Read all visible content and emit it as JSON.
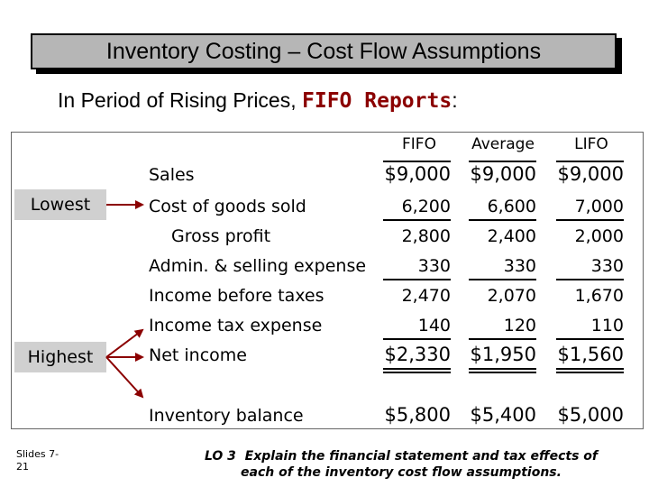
{
  "title": "Inventory Costing – Cost Flow Assumptions",
  "subtitle": {
    "prefix": "In Period of Rising Prices,",
    "highlight": "FIFO Reports",
    "suffix": ":"
  },
  "side_labels": {
    "lowest": "Lowest",
    "highest": "Highest"
  },
  "columns": [
    "FIFO",
    "Average",
    "LIFO"
  ],
  "rows": [
    {
      "label": "Sales",
      "values": [
        "$9,000",
        "$9,000",
        "$9,000"
      ]
    },
    {
      "label": "Cost of goods sold",
      "values": [
        "6,200",
        "6,600",
        "7,000"
      ]
    },
    {
      "label": "Gross profit",
      "values": [
        "2,800",
        "2,400",
        "2,000"
      ]
    },
    {
      "label": "Admin. & selling expense",
      "values": [
        "330",
        "330",
        "330"
      ]
    },
    {
      "label": "Income before taxes",
      "values": [
        "2,470",
        "2,070",
        "1,670"
      ]
    },
    {
      "label": "Income tax expense",
      "values": [
        "140",
        "120",
        "110"
      ]
    },
    {
      "label": "Net income",
      "values": [
        "$2,330",
        "$1,950",
        "$1,560"
      ]
    },
    {
      "label": "Inventory balance",
      "values": [
        "$5,800",
        "$5,400",
        "$5,000"
      ]
    }
  ],
  "footer": {
    "slide_line1": "Slides 7-",
    "slide_line2": "21",
    "lo_line1": "LO 3  Explain the financial statement and tax effects of",
    "lo_line2": "each of the inventory cost flow assumptions."
  },
  "colors": {
    "title_bg": "#b6b6b6",
    "side_bg": "#d0d0d0",
    "arrow": "#8b0000",
    "highlight": "#8b0000"
  }
}
